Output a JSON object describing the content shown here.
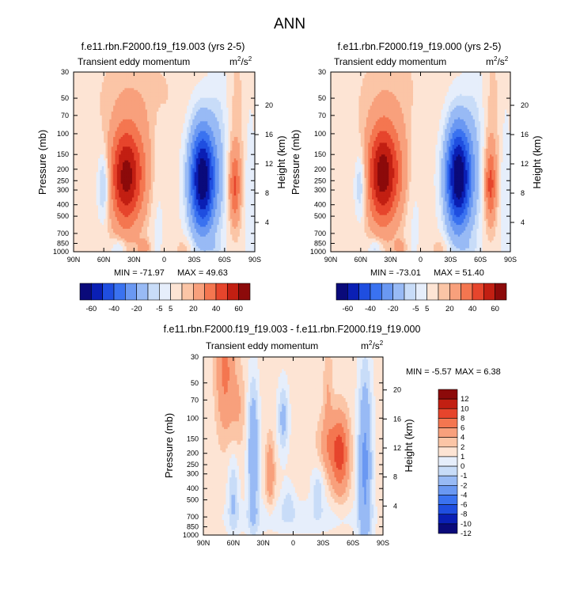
{
  "figure": {
    "title": "ANN"
  },
  "chart_data": [
    {
      "id": "left",
      "type": "heatmap",
      "title": "f.e11.rbn.F2000.f19_f19.003 (yrs 2-5)",
      "subtitle_left": "Transient eddy momentum",
      "units_base": "m",
      "units_sup1": "2",
      "units_mid": "/s",
      "units_sup2": "2",
      "ylabel": "Pressure (mb)",
      "ylabel_right": "Height (km)",
      "xlim": [
        90,
        -90
      ],
      "ylim": [
        1000,
        30
      ],
      "x_ticks": [
        {
          "v": 90,
          "label": "90N"
        },
        {
          "v": 60,
          "label": "60N"
        },
        {
          "v": 30,
          "label": "30N"
        },
        {
          "v": 0,
          "label": "0"
        },
        {
          "v": -30,
          "label": "30S"
        },
        {
          "v": -60,
          "label": "60S"
        },
        {
          "v": -90,
          "label": "90S"
        }
      ],
      "y_ticks": [
        {
          "v": 30,
          "label": "30"
        },
        {
          "v": 50,
          "label": "50"
        },
        {
          "v": 70,
          "label": "70"
        },
        {
          "v": 100,
          "label": "100"
        },
        {
          "v": 150,
          "label": "150"
        },
        {
          "v": 200,
          "label": "200"
        },
        {
          "v": 250,
          "label": "250"
        },
        {
          "v": 300,
          "label": "300"
        },
        {
          "v": 400,
          "label": "400"
        },
        {
          "v": 500,
          "label": "500"
        },
        {
          "v": 700,
          "label": "700"
        },
        {
          "v": 850,
          "label": "850"
        },
        {
          "v": 1000,
          "label": "1000"
        }
      ],
      "height_ticks": [
        {
          "v": 4,
          "label": "4"
        },
        {
          "v": 8,
          "label": "8"
        },
        {
          "v": 12,
          "label": "12"
        },
        {
          "v": 16,
          "label": "16"
        },
        {
          "v": 20,
          "label": "20"
        }
      ],
      "min_label": "MIN = -71.97",
      "max_label": "MAX =  49.63",
      "levels": [
        -60,
        -50,
        -40,
        -30,
        -20,
        -10,
        -5,
        0,
        5,
        10,
        20,
        30,
        40,
        50,
        60
      ],
      "colorbar_labels": [
        "-60",
        "-40",
        "-20",
        "-5",
        "5",
        "20",
        "40",
        "60"
      ],
      "features": [
        {
          "lat": 38,
          "p": 230,
          "dlat": 11,
          "dlog": 0.3,
          "amp": 52
        },
        {
          "lat": 18,
          "p": 200,
          "dlat": 9,
          "dlog": 0.3,
          "amp": 8
        },
        {
          "lat": 28,
          "p": 45,
          "dlat": 28,
          "dlog": 0.3,
          "amp": 6
        },
        {
          "lat": -70,
          "p": 280,
          "dlat": 4,
          "dlog": 0.22,
          "amp": 28
        },
        {
          "lat": -72,
          "p": 80,
          "dlat": 6,
          "dlog": 0.5,
          "amp": 5
        },
        {
          "lat": -38,
          "p": 240,
          "dlat": 9,
          "dlog": 0.32,
          "amp": -72
        },
        {
          "lat": -55,
          "p": 150,
          "dlat": 7,
          "dlog": 0.55,
          "amp": -8
        },
        {
          "lat": 60,
          "p": 270,
          "dlat": 4,
          "dlog": 0.2,
          "amp": -18
        },
        {
          "lat": 8,
          "p": 300,
          "dlat": 6,
          "dlog": 0.5,
          "amp": -5
        },
        {
          "lat": -85,
          "p": 400,
          "dlat": 4,
          "dlog": 0.6,
          "amp": -6
        },
        {
          "lat": 45,
          "p": 930,
          "dlat": 5,
          "dlog": 0.06,
          "amp": -12
        },
        {
          "lat": 20,
          "p": 920,
          "dlat": 4,
          "dlog": 0.05,
          "amp": 14
        },
        {
          "lat": -20,
          "p": 930,
          "dlat": 6,
          "dlog": 0.07,
          "amp": 6
        },
        {
          "lat": -50,
          "p": 930,
          "dlat": 5,
          "dlog": 0.05,
          "amp": -4
        }
      ],
      "bias": 2
    },
    {
      "id": "right",
      "type": "heatmap",
      "title": "f.e11.rbn.F2000.f19_f19.000 (yrs 2-5)",
      "subtitle_left": "Transient eddy momentum",
      "units_base": "m",
      "units_sup1": "2",
      "units_mid": "/s",
      "units_sup2": "2",
      "ylabel": "Pressure (mb)",
      "ylabel_right": "Height (km)",
      "xlim": [
        90,
        -90
      ],
      "ylim": [
        1000,
        30
      ],
      "x_ticks": [
        {
          "v": 90,
          "label": "90N"
        },
        {
          "v": 60,
          "label": "60N"
        },
        {
          "v": 30,
          "label": "30N"
        },
        {
          "v": 0,
          "label": "0"
        },
        {
          "v": -30,
          "label": "30S"
        },
        {
          "v": -60,
          "label": "60S"
        },
        {
          "v": -90,
          "label": "90S"
        }
      ],
      "y_ticks": [
        {
          "v": 30,
          "label": "30"
        },
        {
          "v": 50,
          "label": "50"
        },
        {
          "v": 70,
          "label": "70"
        },
        {
          "v": 100,
          "label": "100"
        },
        {
          "v": 150,
          "label": "150"
        },
        {
          "v": 200,
          "label": "200"
        },
        {
          "v": 250,
          "label": "250"
        },
        {
          "v": 300,
          "label": "300"
        },
        {
          "v": 400,
          "label": "400"
        },
        {
          "v": 500,
          "label": "500"
        },
        {
          "v": 700,
          "label": "700"
        },
        {
          "v": 850,
          "label": "850"
        },
        {
          "v": 1000,
          "label": "1000"
        }
      ],
      "height_ticks": [
        {
          "v": 4,
          "label": "4"
        },
        {
          "v": 8,
          "label": "8"
        },
        {
          "v": 12,
          "label": "12"
        },
        {
          "v": 16,
          "label": "16"
        },
        {
          "v": 20,
          "label": "20"
        }
      ],
      "min_label": "MIN = -73.01",
      "max_label": "MAX =  51.40",
      "levels": [
        -60,
        -50,
        -40,
        -30,
        -20,
        -10,
        -5,
        0,
        5,
        10,
        20,
        30,
        40,
        50,
        60
      ],
      "colorbar_labels": [
        "-60",
        "-40",
        "-20",
        "-5",
        "5",
        "20",
        "40",
        "60"
      ],
      "features": [
        {
          "lat": 38,
          "p": 220,
          "dlat": 11,
          "dlog": 0.3,
          "amp": 54
        },
        {
          "lat": 18,
          "p": 200,
          "dlat": 9,
          "dlog": 0.3,
          "amp": 8
        },
        {
          "lat": 28,
          "p": 45,
          "dlat": 28,
          "dlog": 0.3,
          "amp": 5
        },
        {
          "lat": -70,
          "p": 270,
          "dlat": 4,
          "dlog": 0.22,
          "amp": 30
        },
        {
          "lat": -72,
          "p": 80,
          "dlat": 6,
          "dlog": 0.5,
          "amp": 5
        },
        {
          "lat": -38,
          "p": 230,
          "dlat": 9,
          "dlog": 0.32,
          "amp": -73
        },
        {
          "lat": -55,
          "p": 150,
          "dlat": 7,
          "dlog": 0.55,
          "amp": -8
        },
        {
          "lat": 60,
          "p": 270,
          "dlat": 4,
          "dlog": 0.2,
          "amp": -16
        },
        {
          "lat": 8,
          "p": 300,
          "dlat": 6,
          "dlog": 0.5,
          "amp": -5
        },
        {
          "lat": -85,
          "p": 400,
          "dlat": 4,
          "dlog": 0.6,
          "amp": -6
        },
        {
          "lat": 45,
          "p": 930,
          "dlat": 5,
          "dlog": 0.06,
          "amp": -12
        },
        {
          "lat": 20,
          "p": 920,
          "dlat": 4,
          "dlog": 0.05,
          "amp": 12
        },
        {
          "lat": -20,
          "p": 930,
          "dlat": 6,
          "dlog": 0.07,
          "amp": 6
        },
        {
          "lat": -50,
          "p": 930,
          "dlat": 5,
          "dlog": 0.05,
          "amp": -4
        }
      ],
      "bias": 2
    },
    {
      "id": "diff",
      "type": "heatmap",
      "title": "f.e11.rbn.F2000.f19_f19.003 - f.e11.rbn.F2000.f19_f19.000",
      "subtitle_left": "Transient eddy momentum",
      "units_base": "m",
      "units_sup1": "2",
      "units_mid": "/s",
      "units_sup2": "2",
      "ylabel": "Pressure (mb)",
      "ylabel_right": "Height (km)",
      "xlim": [
        90,
        -90
      ],
      "ylim": [
        1000,
        30
      ],
      "x_ticks": [
        {
          "v": 90,
          "label": "90N"
        },
        {
          "v": 60,
          "label": "60N"
        },
        {
          "v": 30,
          "label": "30N"
        },
        {
          "v": 0,
          "label": "0"
        },
        {
          "v": -30,
          "label": "30S"
        },
        {
          "v": -60,
          "label": "60S"
        },
        {
          "v": -90,
          "label": "90S"
        }
      ],
      "y_ticks": [
        {
          "v": 30,
          "label": "30"
        },
        {
          "v": 50,
          "label": "50"
        },
        {
          "v": 70,
          "label": "70"
        },
        {
          "v": 100,
          "label": "100"
        },
        {
          "v": 150,
          "label": "150"
        },
        {
          "v": 200,
          "label": "200"
        },
        {
          "v": 250,
          "label": "250"
        },
        {
          "v": 300,
          "label": "300"
        },
        {
          "v": 400,
          "label": "400"
        },
        {
          "v": 500,
          "label": "500"
        },
        {
          "v": 700,
          "label": "700"
        },
        {
          "v": 850,
          "label": "850"
        },
        {
          "v": 1000,
          "label": "1000"
        }
      ],
      "height_ticks": [
        {
          "v": 4,
          "label": "4"
        },
        {
          "v": 8,
          "label": "8"
        },
        {
          "v": 12,
          "label": "12"
        },
        {
          "v": 16,
          "label": "16"
        },
        {
          "v": 20,
          "label": "20"
        }
      ],
      "min_label": "MIN =  -5.57",
      "max_label": "MAX =   6.38",
      "levels": [
        -12,
        -10,
        -8,
        -6,
        -4,
        -2,
        -1,
        0,
        1,
        2,
        4,
        6,
        8,
        10,
        12
      ],
      "colorbar_labels": [
        "12",
        "10",
        "8",
        "6",
        "4",
        "2",
        "1",
        "0",
        "-1",
        "-2",
        "-4",
        "-6",
        "-8",
        "-10",
        "-12"
      ],
      "features": [
        {
          "lat": -47,
          "p": 200,
          "dlat": 6,
          "dlog": 0.22,
          "amp": 6.4
        },
        {
          "lat": -35,
          "p": 170,
          "dlat": 7,
          "dlog": 0.18,
          "amp": 2.5
        },
        {
          "lat": 68,
          "p": 40,
          "dlat": 6,
          "dlog": 0.35,
          "amp": 4
        },
        {
          "lat": 55,
          "p": 80,
          "dlat": 5,
          "dlog": 0.25,
          "amp": 1.5
        },
        {
          "lat": 23,
          "p": 290,
          "dlat": 3,
          "dlog": 0.2,
          "amp": 3
        },
        {
          "lat": -35,
          "p": 60,
          "dlat": 3,
          "dlog": 0.3,
          "amp": 1.5
        },
        {
          "lat": 40,
          "p": 200,
          "dlat": 4,
          "dlog": 0.45,
          "amp": -4.5
        },
        {
          "lat": 10,
          "p": 100,
          "dlat": 4,
          "dlog": 0.22,
          "amp": -3
        },
        {
          "lat": -72,
          "p": 250,
          "dlat": 5,
          "dlog": 0.6,
          "amp": -5
        },
        {
          "lat": 60,
          "p": 450,
          "dlat": 4,
          "dlog": 0.25,
          "amp": -2.5
        },
        {
          "lat": -25,
          "p": 400,
          "dlat": 5,
          "dlog": 0.15,
          "amp": -2
        },
        {
          "lat": 5,
          "p": 500,
          "dlat": 5,
          "dlog": 0.12,
          "amp": -1.5
        },
        {
          "lat": 0,
          "p": 700,
          "dlat": 50,
          "dlog": 0.1,
          "amp": -1.2
        }
      ],
      "bias": 0.5
    }
  ]
}
